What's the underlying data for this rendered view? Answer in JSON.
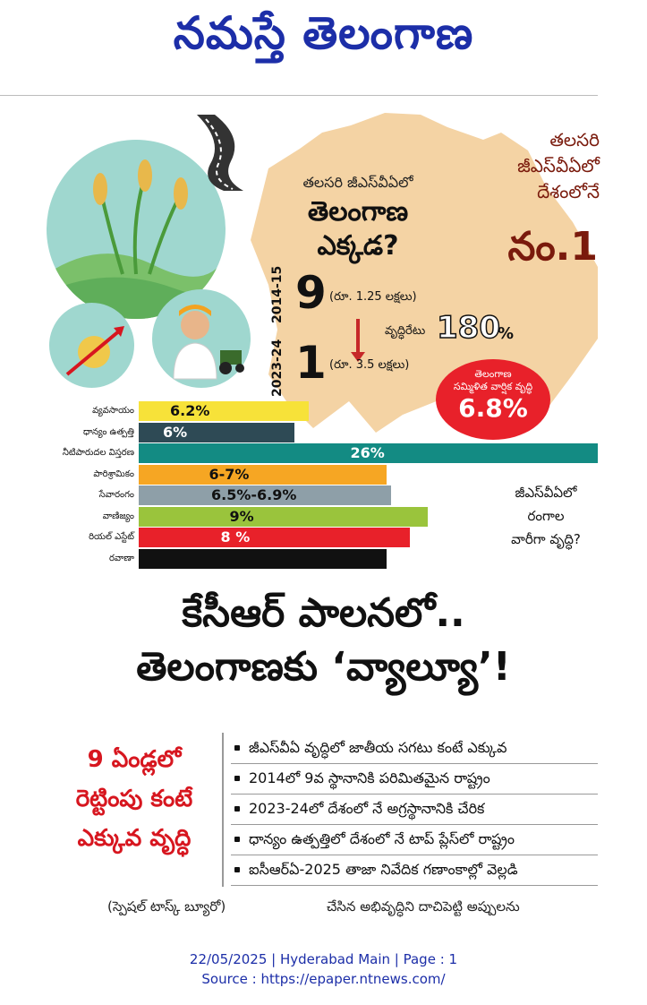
{
  "masthead": {
    "title": "నమస్తే తెలంగాణ"
  },
  "graphic": {
    "right_caption": [
      "తలసరి",
      "జీఎస్‌వీఏలో",
      "దేశంలోనే"
    ],
    "rank": "నం.1",
    "question_small": "తలసరి జీఎస్‌వీఏలో",
    "question_big": [
      "తెలంగాణ",
      "ఎక్కడ?"
    ],
    "years": [
      "2014-15",
      "2023-24"
    ],
    "ranks": [
      {
        "rank": "9",
        "note": "(రూ. 1.25 లక్షలు)"
      },
      {
        "rank": "1",
        "note": "(రూ. 3.5 లక్షలు)"
      }
    ],
    "growth_label": "వృద్ధిరేటు",
    "growth_value": "180",
    "growth_pct": "%",
    "cagr_label": [
      "తెలంగాణ",
      "సమ్మిళిత వార్షిక వృద్ధి"
    ],
    "cagr_value": "6.8%",
    "side_question": [
      "జీఎస్‌వీఏలో",
      "రంగాల",
      "వారీగా వృద్ధి?"
    ],
    "colors": {
      "teal_circle": "#9fd7cf",
      "map": "#f4d3a4",
      "red": "#e8212a",
      "brand_blue": "#1c2ea8"
    }
  },
  "chart_data": {
    "type": "bar",
    "categories": [
      "వ్యవసాయం",
      "ధాన్యం ఉత్పత్తి",
      "నీటిపారుదల విస్తరణ",
      "పారిశ్రామికం",
      "సేవారంగం",
      "వాణిజ్యం",
      "రియల్ ఎస్టేట్",
      "రవాణా"
    ],
    "value_labels": [
      "6.2%",
      "6%",
      "26%",
      "6-7%",
      "6.5%-6.9%",
      "9%",
      "8 %",
      ""
    ],
    "bar_colors": [
      "#f7e239",
      "#2e4a55",
      "#138b83",
      "#f6a623",
      "#8e9fa8",
      "#9ac43c",
      "#e8212a",
      "#111111"
    ],
    "label_colors": [
      "#111111",
      "#ffffff",
      "#ffffff",
      "#111111",
      "#111111",
      "#111111",
      "#ffffff",
      "#ffffff"
    ],
    "bar_lengths": [
      0.37,
      0.34,
      1.0,
      0.54,
      0.55,
      0.63,
      0.59,
      0.54
    ]
  },
  "headline": [
    "కేసీఆర్ పాలనలో..",
    "తెలంగాణకు ‘వ్యాల్యూ’!"
  ],
  "subhead": [
    "9 ఏండ్లలో",
    "రెట్టింపు కంటే",
    "ఎక్కువ వృద్ధి"
  ],
  "bullets": [
    "జీఎస్‌వీఏ వృద్ధిలో జాతీయ సగటు కంటే ఎక్కువ",
    "2014లో 9వ స్థానానికి పరిమితమైన రాష్ట్రం",
    "2023-24లో దేశంలో నే అగ్రస్థానానికి చేరిక",
    "ధాన్యం ఉత్పత్తిలో దేశంలో నే టాప్ ప్లేస్‌లో రాష్ట్రం",
    "ఐసీఆర్ఏ-2025 తాజా నివేదిక గణాంకాల్లో వెల్లడి"
  ],
  "byline": "(స్పెషల్ టాస్క్ బ్యూరో)",
  "body_snippet": "చేసిన అభివృద్ధిని దాచిపెట్టి అప్పులను",
  "footer": {
    "line1": "22/05/2025 | Hyderabad Main | Page : 1",
    "line2": "Source : https://epaper.ntnews.com/"
  }
}
